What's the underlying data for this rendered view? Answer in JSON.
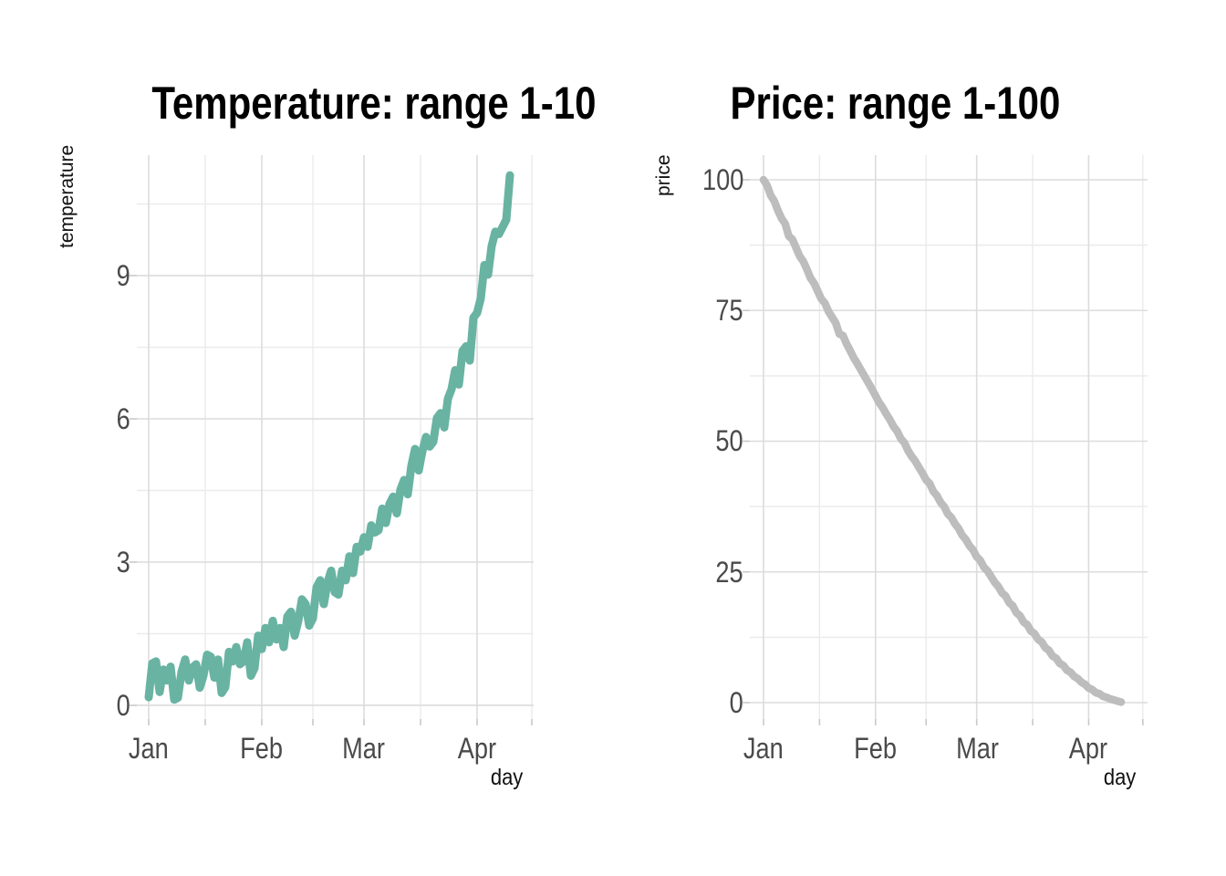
{
  "figure": {
    "background": "#ffffff",
    "grid_major_color": "#dcdcdc",
    "grid_minor_color": "#ebebeb",
    "tick_mark_color": "#c9c9c9",
    "title_color": "#000000",
    "tick_label_color": "#4a4a4a",
    "axis_title_color": "#111111"
  },
  "chart_data": [
    {
      "type": "line",
      "title": "Temperature: range 1-10",
      "xlabel": "day",
      "ylabel": "temperature",
      "x_tick_labels": [
        "Jan",
        "Feb",
        "Mar",
        "Apr"
      ],
      "x_tick_days": [
        1,
        32,
        60,
        91
      ],
      "x_minor_tick_days": [
        16.5,
        46,
        75.5,
        106
      ],
      "y_tick_labels": [
        "0",
        "3",
        "6",
        "9"
      ],
      "y_ticks": [
        0,
        3,
        6,
        9
      ],
      "y_minor_ticks": [
        1.5,
        4.5,
        7.5,
        10.5
      ],
      "xlim_days": [
        -4.75,
        106.5
      ],
      "ylim": [
        -0.287,
        11.523
      ],
      "grid": true,
      "legend": false,
      "line_color": "#69b3a2",
      "line_width": 9,
      "x_days": {
        "from": 1,
        "to": 100,
        "note": "daily points Jan 1 - Apr 10"
      },
      "values": [
        0.17,
        0.88,
        0.92,
        0.28,
        0.75,
        0.52,
        0.81,
        0.12,
        0.16,
        0.7,
        0.96,
        0.52,
        0.79,
        0.86,
        0.37,
        0.62,
        1.06,
        1.02,
        0.58,
        0.96,
        0.26,
        0.38,
        1.12,
        0.92,
        1.22,
        0.86,
        0.92,
        1.32,
        0.62,
        0.78,
        1.46,
        1.18,
        1.62,
        1.32,
        1.77,
        1.38,
        1.62,
        1.22,
        1.86,
        1.96,
        1.46,
        1.77,
        2.22,
        2.12,
        1.67,
        1.82,
        2.47,
        2.62,
        2.12,
        2.57,
        2.82,
        2.37,
        2.32,
        2.82,
        2.62,
        3.12,
        2.77,
        3.32,
        3.22,
        3.52,
        3.32,
        3.77,
        3.62,
        3.67,
        4.12,
        3.82,
        4.22,
        4.37,
        4.02,
        4.52,
        4.72,
        4.42,
        5.02,
        5.37,
        4.92,
        5.32,
        5.62,
        5.42,
        5.52,
        6.02,
        6.12,
        5.82,
        6.42,
        6.62,
        7.02,
        6.72,
        7.42,
        7.52,
        7.22,
        8.12,
        8.22,
        8.52,
        9.22,
        9.02,
        9.62,
        9.92,
        9.87,
        10.02,
        10.17,
        11.1
      ]
    },
    {
      "type": "line",
      "title": "Price: range 1-100",
      "xlabel": "day",
      "ylabel": "price",
      "x_tick_labels": [
        "Jan",
        "Feb",
        "Mar",
        "Apr"
      ],
      "x_tick_days": [
        1,
        32,
        60,
        91
      ],
      "x_minor_tick_days": [
        16.5,
        46,
        75.5,
        106
      ],
      "y_tick_labels": [
        "0",
        "25",
        "50",
        "75",
        "100"
      ],
      "y_ticks": [
        0,
        25,
        50,
        75,
        100
      ],
      "y_minor_ticks": [
        12.5,
        37.5,
        62.5,
        87.5
      ],
      "xlim_days": [
        -5.31,
        107.3
      ],
      "ylim": [
        -3.14,
        104.71
      ],
      "grid": true,
      "legend": false,
      "line_color": "#bdbdbd",
      "line_width": 8.5,
      "x_days": {
        "from": 1,
        "to": 100,
        "note": "daily points Jan 1 - Apr 10"
      },
      "values": [
        100.0,
        98.9,
        97.0,
        95.9,
        94.1,
        92.6,
        91.6,
        89.2,
        88.6,
        87.0,
        85.4,
        84.4,
        82.9,
        81.2,
        80.2,
        78.7,
        77.2,
        76.4,
        74.8,
        73.7,
        72.6,
        70.5,
        70.2,
        68.6,
        67.3,
        65.9,
        64.8,
        63.6,
        62.4,
        61.2,
        60.0,
        58.7,
        57.4,
        56.4,
        55.2,
        54.1,
        52.8,
        51.9,
        50.5,
        49.7,
        48.2,
        47.1,
        46.2,
        45.0,
        43.9,
        42.6,
        41.9,
        40.4,
        39.6,
        38.3,
        37.5,
        36.1,
        35.4,
        34.2,
        33.3,
        32.0,
        31.2,
        30.0,
        29.2,
        27.9,
        27.2,
        25.9,
        25.2,
        24.1,
        23.0,
        22.2,
        21.0,
        20.4,
        19.1,
        18.5,
        17.2,
        16.6,
        15.4,
        14.9,
        13.7,
        13.2,
        12.1,
        11.6,
        10.5,
        10.0,
        8.9,
        8.5,
        7.5,
        7.1,
        6.2,
        5.8,
        5.0,
        4.6,
        3.9,
        3.5,
        2.8,
        2.5,
        1.9,
        1.7,
        1.2,
        1.0,
        0.7,
        0.5,
        0.3,
        0.1
      ]
    }
  ]
}
